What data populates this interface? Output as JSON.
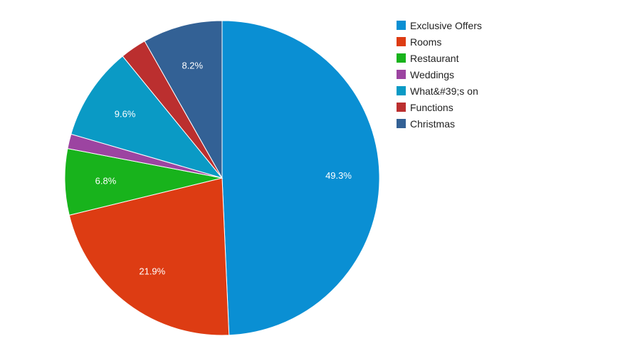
{
  "chart_data": {
    "type": "pie",
    "slices": [
      {
        "label": "Exclusive Offers",
        "value": 49.3,
        "color": "#0a8fd3",
        "pct_label": "49.3%"
      },
      {
        "label": "Rooms",
        "value": 21.9,
        "color": "#dd3c13",
        "pct_label": "21.9%"
      },
      {
        "label": "Restaurant",
        "value": 6.8,
        "color": "#18b31c",
        "pct_label": "6.8%"
      },
      {
        "label": "Weddings",
        "value": 1.5,
        "color": "#9c44a1",
        "pct_label": ""
      },
      {
        "label": "What&#39;s on",
        "value": 9.6,
        "color": "#0a9ac5",
        "pct_label": "9.6%"
      },
      {
        "label": "Functions",
        "value": 2.7,
        "color": "#bb2f2f",
        "pct_label": ""
      },
      {
        "label": "Christmas",
        "value": 8.2,
        "color": "#336195",
        "pct_label": "8.2%"
      }
    ],
    "legend_position": "right"
  }
}
